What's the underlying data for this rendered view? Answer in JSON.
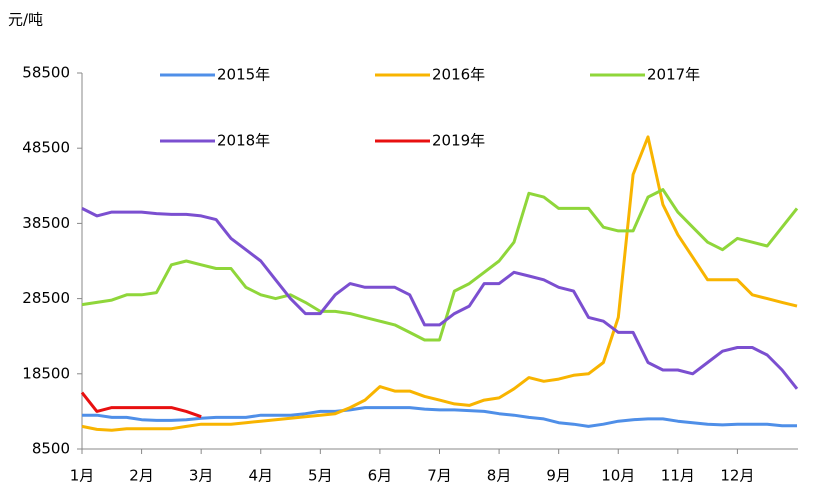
{
  "chart_data": {
    "type": "line",
    "y_label": "元/吨",
    "categories": [
      "1月",
      null,
      null,
      null,
      "2月",
      null,
      null,
      null,
      "3月",
      null,
      null,
      null,
      "4月",
      null,
      null,
      null,
      "5月",
      null,
      null,
      null,
      "6月",
      null,
      null,
      null,
      "7月",
      null,
      null,
      null,
      "8月",
      null,
      null,
      null,
      "9月",
      null,
      null,
      null,
      "10月",
      null,
      null,
      null,
      "11月",
      null,
      null,
      null,
      "12月",
      null,
      null,
      null,
      null
    ],
    "ylim": [
      8500,
      58500
    ],
    "yticks": [
      8500,
      18500,
      28500,
      38500,
      48500,
      58500
    ],
    "series": [
      {
        "name": "2015年",
        "color": "#4f8fe8",
        "values": [
          13000,
          13000,
          12700,
          12700,
          12400,
          12300,
          12300,
          12400,
          12600,
          12700,
          12700,
          12700,
          13000,
          13000,
          13000,
          13200,
          13500,
          13500,
          13700,
          14000,
          14000,
          14000,
          14000,
          13800,
          13700,
          13700,
          13600,
          13500,
          13200,
          13000,
          12700,
          12500,
          12000,
          11800,
          11500,
          11800,
          12200,
          12400,
          12500,
          12500,
          12200,
          12000,
          11800,
          11700,
          11800,
          11800,
          11800,
          11600,
          11600
        ]
      },
      {
        "name": "2016年",
        "color": "#f8b400",
        "values": [
          11500,
          11100,
          11000,
          11200,
          11200,
          11200,
          11200,
          11500,
          11800,
          11800,
          11800,
          12000,
          12200,
          12400,
          12600,
          12800,
          13000,
          13200,
          14000,
          15000,
          16800,
          16200,
          16200,
          15500,
          15000,
          14500,
          14300,
          15000,
          15300,
          16500,
          18000,
          17500,
          17800,
          18300,
          18500,
          20000,
          26000,
          45000,
          50000,
          41000,
          37000,
          34000,
          31000,
          31000,
          31000,
          29000,
          28500,
          28000,
          27500
        ]
      },
      {
        "name": "2017年",
        "color": "#8fd63a",
        "values": [
          27700,
          28000,
          28300,
          29000,
          29000,
          29300,
          33000,
          33500,
          33000,
          32500,
          32500,
          30000,
          29000,
          28500,
          29000,
          28000,
          26800,
          26800,
          26500,
          26000,
          25500,
          25000,
          24000,
          23000,
          23000,
          29500,
          30500,
          32000,
          33500,
          36000,
          42500,
          42000,
          40500,
          40500,
          40500,
          38000,
          37500,
          37500,
          42000,
          43000,
          40000,
          38000,
          36000,
          35000,
          36500,
          36000,
          35500,
          38000,
          40500
        ]
      },
      {
        "name": "2018年",
        "color": "#7b4fd0",
        "values": [
          40500,
          39500,
          40000,
          40000,
          40000,
          39800,
          39700,
          39700,
          39500,
          39000,
          36500,
          35000,
          33500,
          31000,
          28500,
          26500,
          26500,
          29000,
          30500,
          30000,
          30000,
          30000,
          29000,
          25000,
          25000,
          26500,
          27500,
          30500,
          30500,
          32000,
          31500,
          31000,
          30000,
          29500,
          26000,
          25500,
          24000,
          24000,
          20000,
          19000,
          19000,
          18500,
          20000,
          21500,
          22000,
          22000,
          21000,
          19000,
          16500
        ]
      },
      {
        "name": "2019年",
        "color": "#e81010",
        "values": [
          16000,
          13500,
          14000,
          14000,
          14000,
          14000,
          14000,
          13500,
          12800,
          null,
          null,
          null,
          null,
          null,
          null,
          null,
          null,
          null,
          null,
          null,
          null,
          null,
          null,
          null,
          null,
          null,
          null,
          null,
          null,
          null,
          null,
          null,
          null,
          null,
          null,
          null,
          null,
          null,
          null,
          null,
          null,
          null,
          null,
          null,
          null,
          null,
          null,
          null,
          null
        ]
      }
    ]
  }
}
